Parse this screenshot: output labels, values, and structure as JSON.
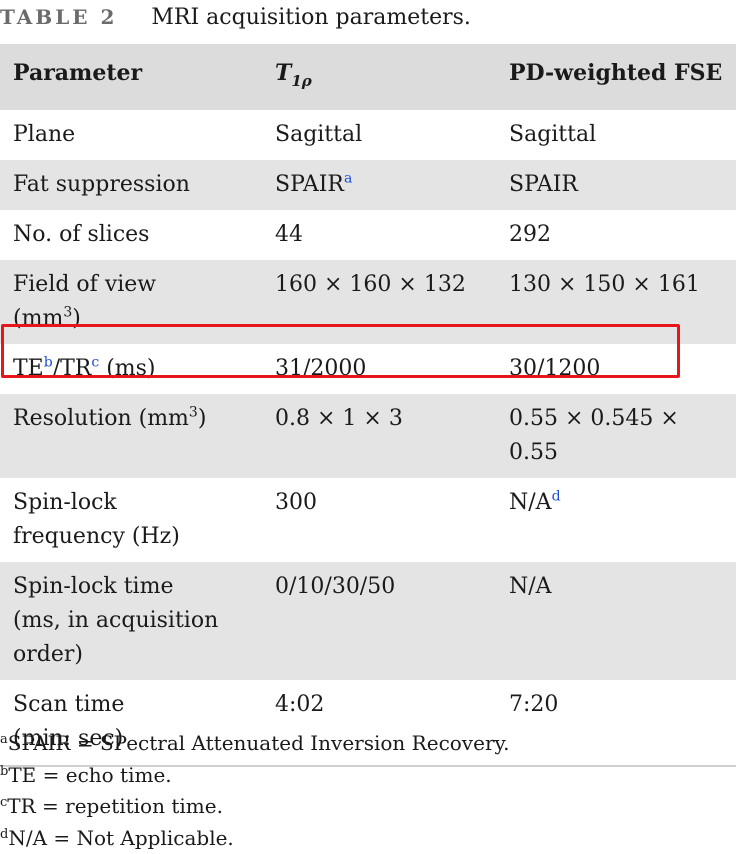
{
  "caption": {
    "label": "TABLE 2",
    "title": "MRI acquisition parameters."
  },
  "table": {
    "headers": {
      "parameter": "Parameter",
      "t1rho_main": "T",
      "t1rho_sub": "1ρ",
      "pd": "PD-weighted FSE"
    },
    "rows": [
      {
        "param": "Plane",
        "t1rho": "Sagittal",
        "pd": "Sagittal"
      },
      {
        "param": "Fat suppression",
        "t1rho": "SPAIR",
        "t1rho_note": "a",
        "pd": "SPAIR"
      },
      {
        "param": "No. of slices",
        "t1rho": "44",
        "pd": "292"
      },
      {
        "param_line1": "Field of view",
        "param_line2": "(mm",
        "param_sup": "3",
        "param_close": ")",
        "t1rho": "160 × 160 × 132",
        "pd": "130 × 150 × 161"
      },
      {
        "param_a": "TE",
        "param_a_note": "b",
        "param_b": "/TR",
        "param_b_note": "c",
        "param_c": " (ms)",
        "t1rho": "31/2000",
        "pd": "30/1200"
      },
      {
        "param": "Resolution (mm",
        "param_sup": "3",
        "param_close": ")",
        "t1rho": "0.8 × 1 × 3",
        "pd": "0.55 × 0.545 × 0.55"
      },
      {
        "param_line1": "Spin-lock",
        "param_line2": "frequency (Hz)",
        "t1rho": "300",
        "pd": "N/A",
        "pd_note": "d"
      },
      {
        "param_line1": "Spin-lock time",
        "param_line2": "(ms, in acquisition",
        "param_line3": "order)",
        "t1rho": "0/10/30/50",
        "pd": "N/A"
      },
      {
        "param_line1": "Scan time",
        "param_line2": "(min: sec)",
        "t1rho": "4:02",
        "pd": "7:20"
      }
    ]
  },
  "footnotes": [
    {
      "mark": "a",
      "text": "SPAIR = SPectral Attenuated Inversion Recovery."
    },
    {
      "mark": "b",
      "text": "TE = echo time."
    },
    {
      "mark": "c",
      "text": "TR = repetition time."
    },
    {
      "mark": "d",
      "text": "N/A = Not Applicable."
    }
  ],
  "colors": {
    "highlight_border": "#e8151b",
    "footnote_link": "#1a4fd6",
    "stripe": "#e4e4e4"
  }
}
